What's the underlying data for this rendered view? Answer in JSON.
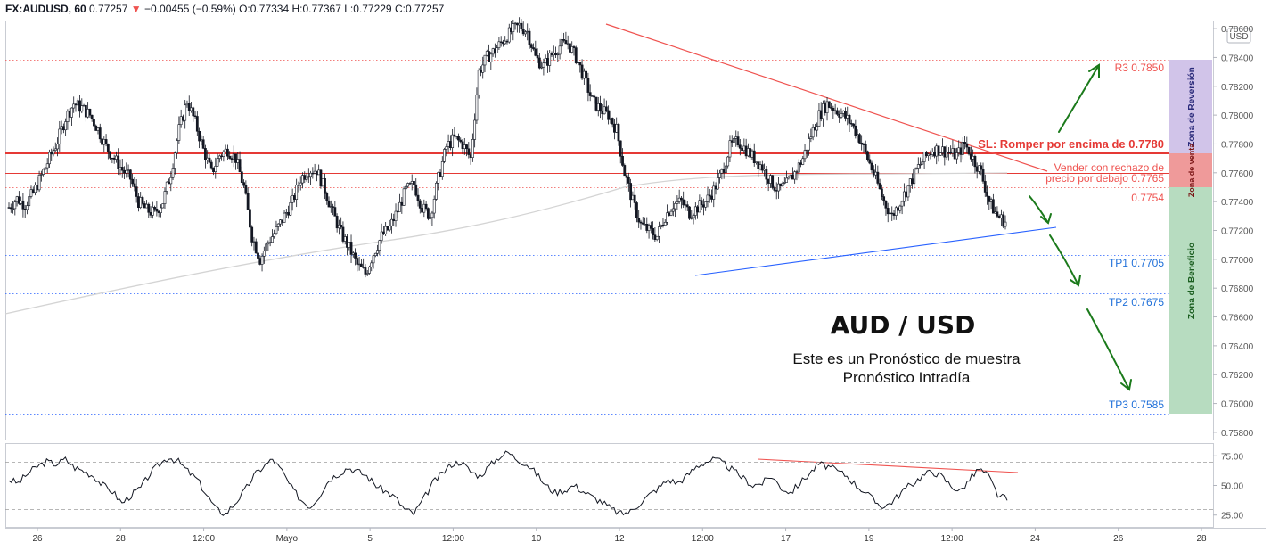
{
  "header": {
    "symbol": "FX:AUDUSD, 60",
    "last": "0.77257",
    "arrow": "▼",
    "change": "−0.00455 (−0.59%)",
    "open": "O:0.77334",
    "high": "H:0.77367",
    "low": "L:0.77229",
    "close": "C:0.77257"
  },
  "axis": {
    "currency_label": "USD",
    "price_ticks": [
      "0.78600",
      "0.78400",
      "0.78200",
      "0.78000",
      "0.77800",
      "0.77600",
      "0.77400",
      "0.77200",
      "0.77000",
      "0.76800",
      "0.76600",
      "0.76400",
      "0.76200",
      "0.76000",
      "0.75800"
    ],
    "rsi_ticks": [
      "75.00",
      "50.00",
      "25.00"
    ],
    "time_ticks": [
      "26",
      "28",
      "12:00",
      "Mayo",
      "5",
      "12:00",
      "10",
      "12",
      "12:00",
      "17",
      "19",
      "12:00",
      "24",
      "26",
      "28"
    ]
  },
  "levels": {
    "r3": "R3 0.7850",
    "sl": "SL: Romper por encima de 0.7780",
    "sell_line1": "Vender con rechazo de",
    "sell_line2": "precio por debajo 0.7765",
    "pivot": "0.7754",
    "tp1": "TP1 0.7705",
    "tp2": "TP2 0.7675",
    "tp3": "TP3 0.7585"
  },
  "zones": {
    "reversion": "Zona de Reversión",
    "venta": "Zona de venta",
    "beneficio": "Zona de Beneficio"
  },
  "overlay": {
    "title": "AUD / USD",
    "line1": "Este es un Pronóstico de muestra",
    "line2": "Pronóstico Intradía"
  },
  "colors": {
    "up": "#26a69a",
    "down": "#ef5350",
    "candle": "#131722",
    "sl_line": "#e53935",
    "tp_line": "#2962ff",
    "reversion_zone": "#d1c4e9",
    "venta_zone": "#ef9a9a",
    "beneficio_zone": "#b7dcc0",
    "arrow": "#1b7a1b"
  },
  "chart_data": {
    "type": "line",
    "ylim": [
      0.7575,
      0.7865
    ],
    "rsi_ylim": [
      15,
      85
    ],
    "price": [
      0.7736,
      0.7742,
      0.7738,
      0.7746,
      0.7758,
      0.777,
      0.7782,
      0.7798,
      0.7808,
      0.7805,
      0.78,
      0.779,
      0.7778,
      0.777,
      0.7762,
      0.7756,
      0.774,
      0.7734,
      0.7732,
      0.774,
      0.776,
      0.779,
      0.781,
      0.7795,
      0.7776,
      0.776,
      0.7772,
      0.7776,
      0.777,
      0.775,
      0.7716,
      0.77,
      0.7712,
      0.772,
      0.773,
      0.774,
      0.7756,
      0.7762,
      0.7762,
      0.7748,
      0.7732,
      0.7718,
      0.7708,
      0.7696,
      0.769,
      0.7704,
      0.7716,
      0.7722,
      0.7734,
      0.7748,
      0.7752,
      0.7736,
      0.773,
      0.7756,
      0.7778,
      0.7784,
      0.778,
      0.777,
      0.783,
      0.784,
      0.7845,
      0.7852,
      0.7858,
      0.7862,
      0.7858,
      0.784,
      0.7834,
      0.7842,
      0.7848,
      0.785,
      0.784,
      0.7826,
      0.781,
      0.7804,
      0.78,
      0.779,
      0.776,
      0.774,
      0.7724,
      0.772,
      0.7716,
      0.773,
      0.7738,
      0.774,
      0.7732,
      0.7736,
      0.774,
      0.7748,
      0.776,
      0.7778,
      0.7782,
      0.7776,
      0.777,
      0.7764,
      0.7754,
      0.7748,
      0.7752,
      0.776,
      0.777,
      0.7786,
      0.78,
      0.7808,
      0.7804,
      0.78,
      0.7794,
      0.7784,
      0.777,
      0.7756,
      0.774,
      0.773,
      0.774,
      0.775,
      0.7762,
      0.777,
      0.7776,
      0.7776,
      0.7774,
      0.7772,
      0.778,
      0.777,
      0.776,
      0.774,
      0.773,
      0.7726
    ],
    "rsi": [
      55,
      52,
      60,
      66,
      70,
      68,
      72,
      65,
      62,
      58,
      50,
      45,
      35,
      42,
      48,
      60,
      68,
      74,
      70,
      62,
      55,
      42,
      30,
      26,
      35,
      45,
      58,
      66,
      72,
      62,
      48,
      38,
      32,
      42,
      55,
      60,
      65,
      62,
      58,
      50,
      45,
      40,
      30,
      26,
      38,
      52,
      60,
      68,
      70,
      62,
      58,
      66,
      74,
      78,
      72,
      68,
      60,
      50,
      44,
      46,
      50,
      45,
      40,
      36,
      30,
      26,
      28,
      35,
      42,
      48,
      55,
      52,
      58,
      66,
      70,
      72,
      68,
      62,
      56,
      50,
      52,
      58,
      48,
      44,
      52,
      60,
      68,
      66,
      62,
      58,
      50,
      44,
      36,
      32,
      38,
      46,
      52,
      58,
      62,
      58,
      50,
      45,
      55,
      64,
      58,
      42,
      38
    ],
    "legend": "none",
    "grid": false
  }
}
